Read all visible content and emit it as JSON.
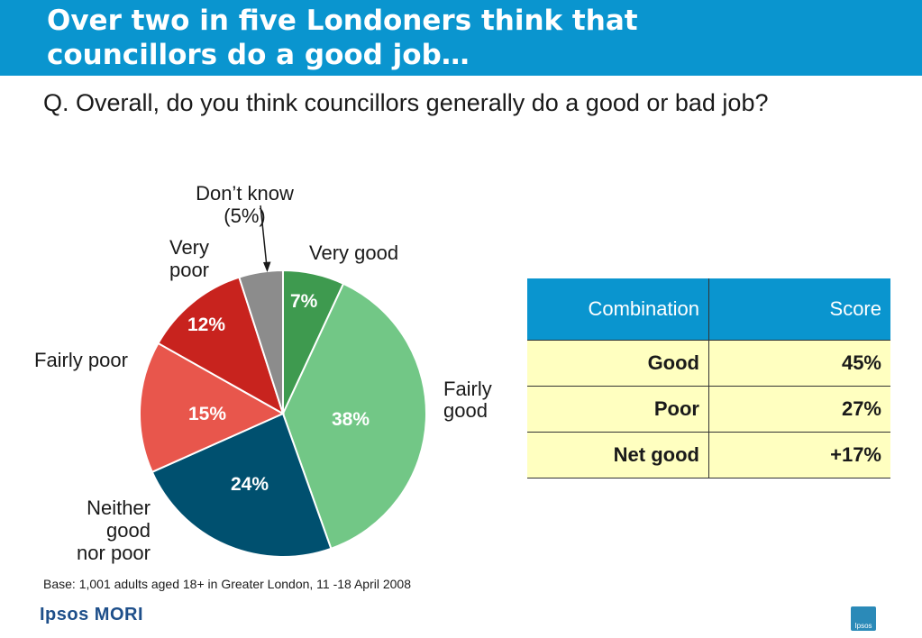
{
  "header": {
    "title_line1": "Over two in five Londoners think that",
    "title_line2": "councillors do a good job…"
  },
  "question": "Q. Overall, do you think councillors generally do a good or bad job?",
  "chart_data": {
    "type": "pie",
    "slices": [
      {
        "label": "Very good",
        "value": 7,
        "display": "7%",
        "color": "#3e9a4f"
      },
      {
        "label": "Fairly good",
        "value": 38,
        "display": "38%",
        "color": "#72c786"
      },
      {
        "label": "Neither good nor poor",
        "value": 24,
        "display": "24%",
        "color": "#00506f"
      },
      {
        "label": "Fairly poor",
        "value": 15,
        "display": "15%",
        "color": "#e8564c"
      },
      {
        "label": "Very poor",
        "value": 12,
        "display": "12%",
        "color": "#c8231e"
      },
      {
        "label": "Don’t know",
        "value": 5,
        "display": "(5%)",
        "color": "#8c8c8c"
      }
    ]
  },
  "labels": {
    "very_good": "Very good",
    "fairly_good_1": "Fairly",
    "fairly_good_2": "good",
    "neither_1": "Neither",
    "neither_2": "good",
    "neither_3": "nor poor",
    "fairly_poor": "Fairly poor",
    "very_poor_1": "Very",
    "very_poor_2": "poor",
    "dont_know_1": "Don’t know",
    "dont_know_2": "(5%)"
  },
  "table": {
    "headers": [
      "Combination",
      "Score"
    ],
    "rows": [
      {
        "name": "Good",
        "score": "45%"
      },
      {
        "name": "Poor",
        "score": "27%"
      },
      {
        "name": "Net good",
        "score": "+17%"
      }
    ]
  },
  "base_note": "Base: 1,001 adults aged 18+ in Greater London, 11 -18 April 2008",
  "logo": {
    "text": "Ipsos MORI",
    "badge": "Ipsos"
  },
  "colors": {
    "header_bg": "#0a95cf",
    "table_row_bg": "#ffffc0"
  }
}
